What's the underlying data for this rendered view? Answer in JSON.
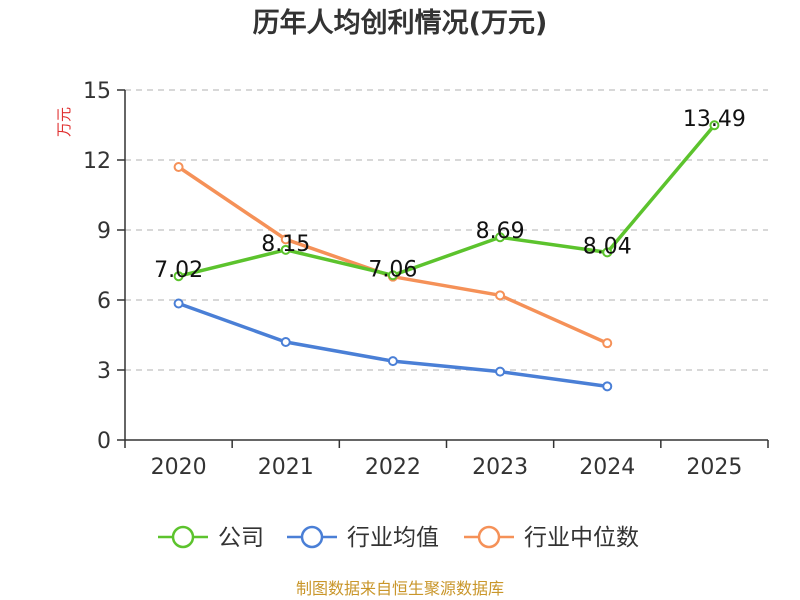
{
  "chart_data": {
    "type": "line",
    "title": "历年人均创利情况(万元)",
    "xlabel": "",
    "ylabel": "万元",
    "categories": [
      "2020",
      "2021",
      "2022",
      "2023",
      "2024",
      "2025"
    ],
    "ylim": [
      0,
      15
    ],
    "yticks": [
      0,
      3,
      6,
      9,
      12,
      15
    ],
    "ytick_labels": [
      "0",
      "3",
      "6",
      "9",
      "12",
      "15"
    ],
    "grid": true,
    "legend_position": "bottom",
    "series": [
      {
        "name": "公司",
        "color": "#5cc32d",
        "values": [
          7.02,
          8.15,
          7.06,
          8.69,
          8.04,
          13.49
        ],
        "labels": [
          "7.02",
          "8.15",
          "7.06",
          "8.69",
          "8.04",
          "13.49"
        ]
      },
      {
        "name": "行业均值",
        "color": "#4a7fd6",
        "values": [
          5.85,
          4.2,
          3.38,
          2.93,
          2.3,
          null
        ],
        "labels": []
      },
      {
        "name": "行业中位数",
        "color": "#f59158",
        "values": [
          11.7,
          8.6,
          7.0,
          6.2,
          4.15,
          null
        ],
        "labels": []
      }
    ]
  },
  "source": "制图数据来自恒生聚源数据库"
}
